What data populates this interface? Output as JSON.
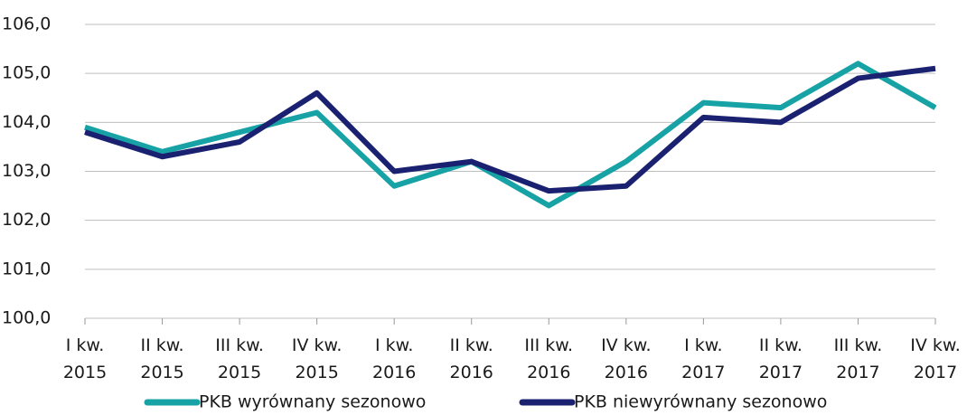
{
  "chart_data": {
    "type": "line",
    "categories": [
      "I kw. 2015",
      "II kw. 2015",
      "III kw. 2015",
      "IV kw. 2015",
      "I kw. 2016",
      "II kw. 2016",
      "III kw. 2016",
      "IV kw. 2016",
      "I kw. 2017",
      "II kw. 2017",
      "III kw. 2017",
      "IV kw. 2017"
    ],
    "series": [
      {
        "name": "PKB wyrównany sezonowo",
        "color": "#17a2a5",
        "values": [
          103.9,
          103.4,
          103.8,
          104.2,
          102.7,
          103.2,
          102.3,
          103.2,
          104.4,
          104.3,
          105.2,
          104.3
        ]
      },
      {
        "name": "PKB niewyrównany sezonowo",
        "color": "#1a2170",
        "values": [
          103.8,
          103.3,
          103.6,
          104.6,
          103.0,
          103.2,
          102.6,
          102.7,
          104.1,
          104.0,
          104.9,
          105.1
        ]
      }
    ],
    "ylim": [
      100,
      106
    ],
    "yticks": [
      {
        "value": 100,
        "label": "100,0"
      },
      {
        "value": 101,
        "label": "101,0"
      },
      {
        "value": 102,
        "label": "102,0"
      },
      {
        "value": 103,
        "label": "103,0"
      },
      {
        "value": 104,
        "label": "104,0"
      },
      {
        "value": 105,
        "label": "105,0"
      },
      {
        "value": 106,
        "label": "106,0"
      }
    ],
    "grid": true,
    "legend": "bottom"
  }
}
